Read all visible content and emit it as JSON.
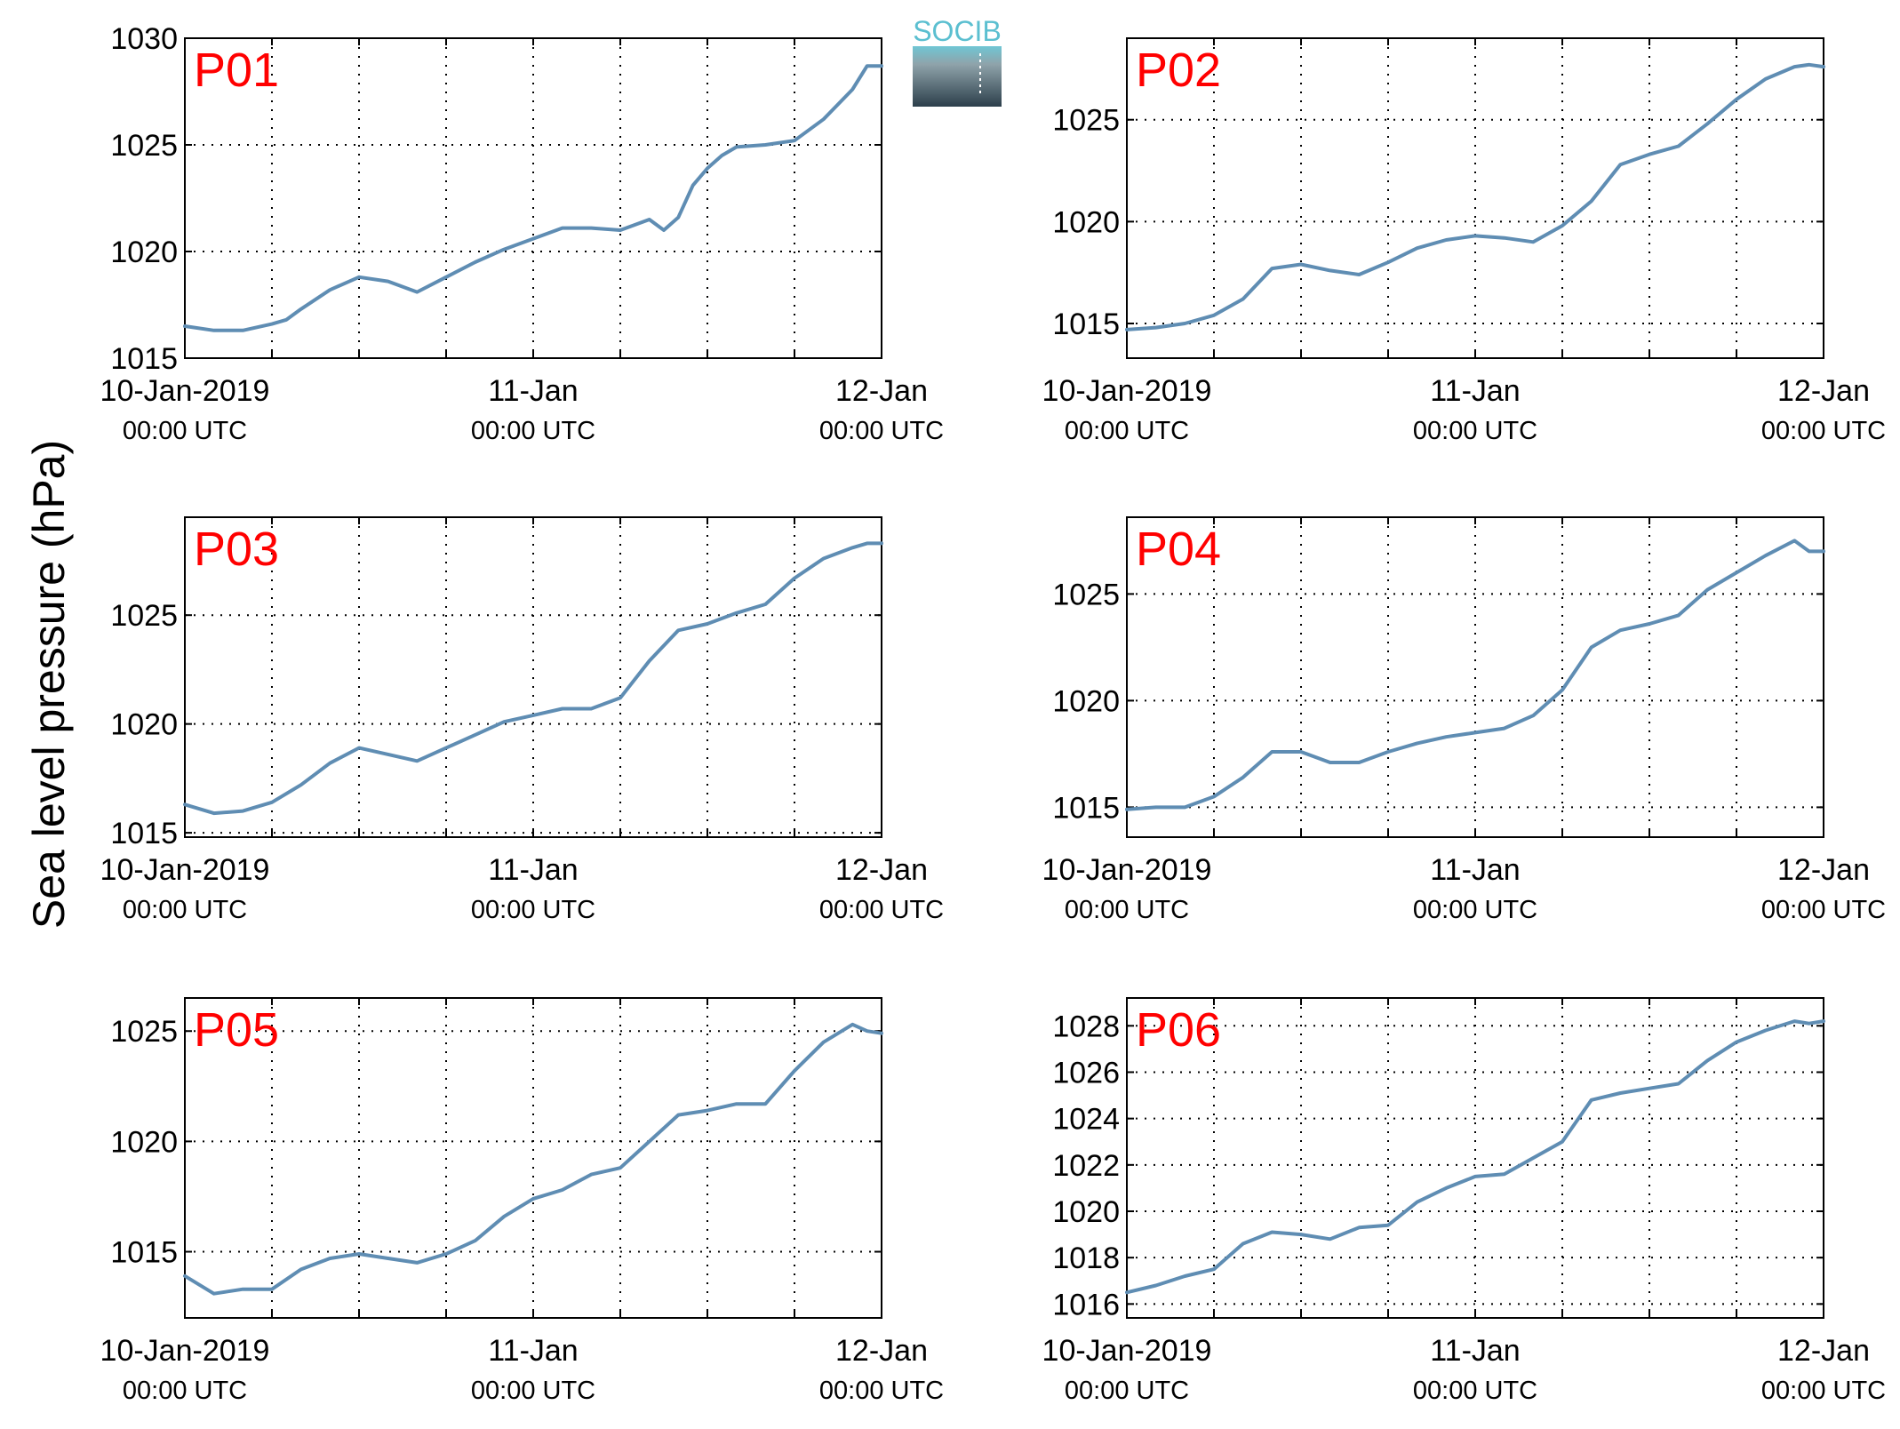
{
  "ylabel": "Sea level pressure (hPa)",
  "logo": {
    "text": "SOCIB",
    "colors": [
      "#5bbfd0",
      "#8a959c",
      "#2a3f4c"
    ]
  },
  "line_color": "#5f8db3",
  "label_color": "#ff0000",
  "chart_data": [
    {
      "type": "line",
      "label": "P01",
      "xlim": [
        "2019-01-10T00:00",
        "2019-01-12T00:00"
      ],
      "ylim": [
        1015,
        1030
      ],
      "yticks": [
        1015,
        1020,
        1025,
        1030
      ],
      "xticks": [
        {
          "value": "2019-01-10T00:00",
          "line1": "10-Jan-2019",
          "line2": "00:00 UTC"
        },
        {
          "value": "2019-01-11T00:00",
          "line1": "11-Jan",
          "line2": "00:00 UTC"
        },
        {
          "value": "2019-01-12T00:00",
          "line1": "12-Jan",
          "line2": "00:00 UTC"
        }
      ],
      "grid": true,
      "series": [
        {
          "x": [
            "2019-01-10T00:00",
            "2019-01-10T02:00",
            "2019-01-10T04:00",
            "2019-01-10T06:00",
            "2019-01-10T07:00",
            "2019-01-10T08:00",
            "2019-01-10T10:00",
            "2019-01-10T12:00",
            "2019-01-10T14:00",
            "2019-01-10T16:00",
            "2019-01-10T18:00",
            "2019-01-10T20:00",
            "2019-01-10T22:00",
            "2019-01-11T00:00",
            "2019-01-11T02:00",
            "2019-01-11T04:00",
            "2019-01-11T06:00",
            "2019-01-11T08:00",
            "2019-01-11T09:00",
            "2019-01-11T10:00",
            "2019-01-11T11:00",
            "2019-01-11T12:00",
            "2019-01-11T13:00",
            "2019-01-11T14:00",
            "2019-01-11T16:00",
            "2019-01-11T18:00",
            "2019-01-11T20:00",
            "2019-01-11T22:00",
            "2019-01-11T23:00",
            "2019-01-12T00:00"
          ],
          "y": [
            1016.5,
            1016.3,
            1016.3,
            1016.6,
            1016.8,
            1017.3,
            1018.2,
            1018.8,
            1018.6,
            1018.1,
            1018.8,
            1019.5,
            1020.1,
            1020.6,
            1021.1,
            1021.1,
            1021.0,
            1021.5,
            1021.0,
            1021.6,
            1023.1,
            1023.9,
            1024.5,
            1024.9,
            1025.0,
            1025.2,
            1026.2,
            1027.6,
            1028.7,
            1028.7
          ]
        }
      ]
    },
    {
      "type": "line",
      "label": "P02",
      "xlim": [
        "2019-01-10T00:00",
        "2019-01-12T00:00"
      ],
      "ylim": [
        1013.3,
        1029.0
      ],
      "yticks": [
        1015,
        1020,
        1025
      ],
      "xticks": [
        {
          "value": "2019-01-10T00:00",
          "line1": "10-Jan-2019",
          "line2": "00:00 UTC"
        },
        {
          "value": "2019-01-11T00:00",
          "line1": "11-Jan",
          "line2": "00:00 UTC"
        },
        {
          "value": "2019-01-12T00:00",
          "line1": "12-Jan",
          "line2": "00:00 UTC"
        }
      ],
      "grid": true,
      "series": [
        {
          "x": [
            "2019-01-10T00:00",
            "2019-01-10T02:00",
            "2019-01-10T04:00",
            "2019-01-10T06:00",
            "2019-01-10T08:00",
            "2019-01-10T10:00",
            "2019-01-10T12:00",
            "2019-01-10T14:00",
            "2019-01-10T16:00",
            "2019-01-10T18:00",
            "2019-01-10T20:00",
            "2019-01-10T22:00",
            "2019-01-11T00:00",
            "2019-01-11T02:00",
            "2019-01-11T04:00",
            "2019-01-11T06:00",
            "2019-01-11T08:00",
            "2019-01-11T10:00",
            "2019-01-11T12:00",
            "2019-01-11T14:00",
            "2019-01-11T16:00",
            "2019-01-11T18:00",
            "2019-01-11T20:00",
            "2019-01-11T22:00",
            "2019-01-11T23:00",
            "2019-01-12T00:00"
          ],
          "y": [
            1014.7,
            1014.8,
            1015.0,
            1015.4,
            1016.2,
            1017.7,
            1017.9,
            1017.6,
            1017.4,
            1018.0,
            1018.7,
            1019.1,
            1019.3,
            1019.2,
            1019.0,
            1019.8,
            1021.0,
            1022.8,
            1023.3,
            1023.7,
            1024.8,
            1026.0,
            1027.0,
            1027.6,
            1027.7,
            1027.6
          ]
        }
      ]
    },
    {
      "type": "line",
      "label": "P03",
      "xlim": [
        "2019-01-10T00:00",
        "2019-01-12T00:00"
      ],
      "ylim": [
        1014.8,
        1029.5
      ],
      "yticks": [
        1015,
        1020,
        1025
      ],
      "xticks": [
        {
          "value": "2019-01-10T00:00",
          "line1": "10-Jan-2019",
          "line2": "00:00 UTC"
        },
        {
          "value": "2019-01-11T00:00",
          "line1": "11-Jan",
          "line2": "00:00 UTC"
        },
        {
          "value": "2019-01-12T00:00",
          "line1": "12-Jan",
          "line2": "00:00 UTC"
        }
      ],
      "grid": true,
      "series": [
        {
          "x": [
            "2019-01-10T00:00",
            "2019-01-10T02:00",
            "2019-01-10T04:00",
            "2019-01-10T06:00",
            "2019-01-10T08:00",
            "2019-01-10T10:00",
            "2019-01-10T12:00",
            "2019-01-10T14:00",
            "2019-01-10T16:00",
            "2019-01-10T18:00",
            "2019-01-10T20:00",
            "2019-01-10T22:00",
            "2019-01-11T00:00",
            "2019-01-11T02:00",
            "2019-01-11T04:00",
            "2019-01-11T06:00",
            "2019-01-11T08:00",
            "2019-01-11T10:00",
            "2019-01-11T12:00",
            "2019-01-11T14:00",
            "2019-01-11T16:00",
            "2019-01-11T18:00",
            "2019-01-11T20:00",
            "2019-01-11T22:00",
            "2019-01-11T23:00",
            "2019-01-12T00:00"
          ],
          "y": [
            1016.3,
            1015.9,
            1016.0,
            1016.4,
            1017.2,
            1018.2,
            1018.9,
            1018.6,
            1018.3,
            1018.9,
            1019.5,
            1020.1,
            1020.4,
            1020.7,
            1020.7,
            1021.2,
            1022.9,
            1024.3,
            1024.6,
            1025.1,
            1025.5,
            1026.7,
            1027.6,
            1028.1,
            1028.3,
            1028.3
          ]
        }
      ]
    },
    {
      "type": "line",
      "label": "P04",
      "xlim": [
        "2019-01-10T00:00",
        "2019-01-12T00:00"
      ],
      "ylim": [
        1013.6,
        1028.6
      ],
      "yticks": [
        1015,
        1020,
        1025
      ],
      "xticks": [
        {
          "value": "2019-01-10T00:00",
          "line1": "10-Jan-2019",
          "line2": "00:00 UTC"
        },
        {
          "value": "2019-01-11T00:00",
          "line1": "11-Jan",
          "line2": "00:00 UTC"
        },
        {
          "value": "2019-01-12T00:00",
          "line1": "12-Jan",
          "line2": "00:00 UTC"
        }
      ],
      "grid": true,
      "series": [
        {
          "x": [
            "2019-01-10T00:00",
            "2019-01-10T02:00",
            "2019-01-10T04:00",
            "2019-01-10T06:00",
            "2019-01-10T08:00",
            "2019-01-10T10:00",
            "2019-01-10T12:00",
            "2019-01-10T14:00",
            "2019-01-10T16:00",
            "2019-01-10T18:00",
            "2019-01-10T20:00",
            "2019-01-10T22:00",
            "2019-01-11T00:00",
            "2019-01-11T02:00",
            "2019-01-11T04:00",
            "2019-01-11T06:00",
            "2019-01-11T08:00",
            "2019-01-11T10:00",
            "2019-01-11T12:00",
            "2019-01-11T14:00",
            "2019-01-11T16:00",
            "2019-01-11T18:00",
            "2019-01-11T20:00",
            "2019-01-11T22:00",
            "2019-01-11T23:00",
            "2019-01-12T00:00"
          ],
          "y": [
            1014.9,
            1015.0,
            1015.0,
            1015.5,
            1016.4,
            1017.6,
            1017.6,
            1017.1,
            1017.1,
            1017.6,
            1018.0,
            1018.3,
            1018.5,
            1018.7,
            1019.3,
            1020.5,
            1022.5,
            1023.3,
            1023.6,
            1024.0,
            1025.2,
            1026.0,
            1026.8,
            1027.5,
            1027.0,
            1027.0
          ]
        }
      ]
    },
    {
      "type": "line",
      "label": "P05",
      "xlim": [
        "2019-01-10T00:00",
        "2019-01-12T00:00"
      ],
      "ylim": [
        1012.0,
        1026.5
      ],
      "yticks": [
        1015,
        1020,
        1025
      ],
      "xticks": [
        {
          "value": "2019-01-10T00:00",
          "line1": "10-Jan-2019",
          "line2": "00:00 UTC"
        },
        {
          "value": "2019-01-11T00:00",
          "line1": "11-Jan",
          "line2": "00:00 UTC"
        },
        {
          "value": "2019-01-12T00:00",
          "line1": "12-Jan",
          "line2": "00:00 UTC"
        }
      ],
      "grid": true,
      "series": [
        {
          "x": [
            "2019-01-10T00:00",
            "2019-01-10T02:00",
            "2019-01-10T04:00",
            "2019-01-10T06:00",
            "2019-01-10T08:00",
            "2019-01-10T10:00",
            "2019-01-10T12:00",
            "2019-01-10T14:00",
            "2019-01-10T16:00",
            "2019-01-10T18:00",
            "2019-01-10T20:00",
            "2019-01-10T22:00",
            "2019-01-11T00:00",
            "2019-01-11T02:00",
            "2019-01-11T04:00",
            "2019-01-11T06:00",
            "2019-01-11T08:00",
            "2019-01-11T10:00",
            "2019-01-11T12:00",
            "2019-01-11T14:00",
            "2019-01-11T16:00",
            "2019-01-11T18:00",
            "2019-01-11T20:00",
            "2019-01-11T22:00",
            "2019-01-11T23:00",
            "2019-01-12T00:00"
          ],
          "y": [
            1013.9,
            1013.1,
            1013.3,
            1013.3,
            1014.2,
            1014.7,
            1014.9,
            1014.7,
            1014.5,
            1014.9,
            1015.5,
            1016.6,
            1017.4,
            1017.8,
            1018.5,
            1018.8,
            1020.0,
            1021.2,
            1021.4,
            1021.7,
            1021.7,
            1023.2,
            1024.5,
            1025.3,
            1025.0,
            1024.9
          ]
        }
      ]
    },
    {
      "type": "line",
      "label": "P06",
      "xlim": [
        "2019-01-10T00:00",
        "2019-01-12T00:00"
      ],
      "ylim": [
        1015.4,
        1029.2
      ],
      "yticks": [
        1016,
        1018,
        1020,
        1022,
        1024,
        1026,
        1028
      ],
      "xticks": [
        {
          "value": "2019-01-10T00:00",
          "line1": "10-Jan-2019",
          "line2": "00:00 UTC"
        },
        {
          "value": "2019-01-11T00:00",
          "line1": "11-Jan",
          "line2": "00:00 UTC"
        },
        {
          "value": "2019-01-12T00:00",
          "line1": "12-Jan",
          "line2": "00:00 UTC"
        }
      ],
      "grid": true,
      "series": [
        {
          "x": [
            "2019-01-10T00:00",
            "2019-01-10T02:00",
            "2019-01-10T04:00",
            "2019-01-10T06:00",
            "2019-01-10T08:00",
            "2019-01-10T10:00",
            "2019-01-10T12:00",
            "2019-01-10T14:00",
            "2019-01-10T16:00",
            "2019-01-10T18:00",
            "2019-01-10T20:00",
            "2019-01-10T22:00",
            "2019-01-11T00:00",
            "2019-01-11T02:00",
            "2019-01-11T04:00",
            "2019-01-11T06:00",
            "2019-01-11T08:00",
            "2019-01-11T10:00",
            "2019-01-11T12:00",
            "2019-01-11T14:00",
            "2019-01-11T16:00",
            "2019-01-11T18:00",
            "2019-01-11T20:00",
            "2019-01-11T22:00",
            "2019-01-11T23:00",
            "2019-01-12T00:00"
          ],
          "y": [
            1016.5,
            1016.8,
            1017.2,
            1017.5,
            1018.6,
            1019.1,
            1019.0,
            1018.8,
            1019.3,
            1019.4,
            1020.4,
            1021.0,
            1021.5,
            1021.6,
            1022.3,
            1023.0,
            1024.8,
            1025.1,
            1025.3,
            1025.5,
            1026.5,
            1027.3,
            1027.8,
            1028.2,
            1028.1,
            1028.2
          ]
        }
      ]
    }
  ]
}
